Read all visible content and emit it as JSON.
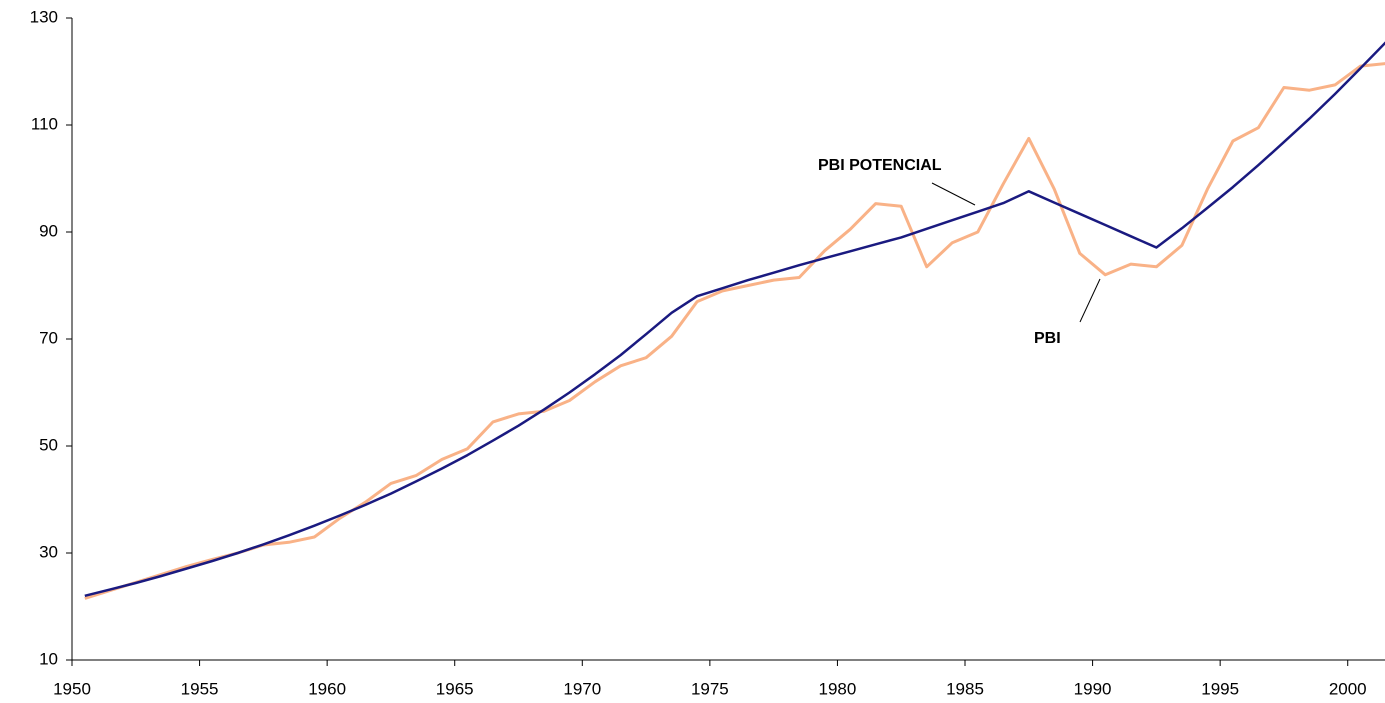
{
  "chart_data": {
    "type": "line",
    "x": [
      1950.5,
      1951.5,
      1952.5,
      1953.5,
      1954.5,
      1955.5,
      1956.5,
      1957.5,
      1958.5,
      1959.5,
      1960.5,
      1961.5,
      1962.5,
      1963.5,
      1964.5,
      1965.5,
      1966.5,
      1967.5,
      1968.5,
      1969.5,
      1970.5,
      1971.5,
      1972.5,
      1973.5,
      1974.5,
      1975.5,
      1976.5,
      1977.5,
      1978.5,
      1979.5,
      1980.5,
      1981.5,
      1982.5,
      1983.5,
      1984.5,
      1985.5,
      1986.5,
      1987.5,
      1988.5,
      1989.5,
      1990.5,
      1991.5,
      1992.5,
      1993.5,
      1994.5,
      1995.5,
      1996.5,
      1997.5,
      1998.5,
      1999.5,
      2000.5,
      2001.5
    ],
    "series": [
      {
        "name": "PBI",
        "color": "#f9b287",
        "values": [
          21.5,
          23,
          24.5,
          26,
          27.5,
          28.8,
          30,
          31.5,
          32,
          33,
          36.5,
          39.5,
          43,
          44.5,
          47.5,
          49.5,
          54.5,
          56,
          56.5,
          58.5,
          62,
          65,
          66.5,
          70.5,
          77,
          79,
          80,
          81,
          81.5,
          86.5,
          90.5,
          95.3,
          94.8,
          83.5,
          88,
          90,
          99,
          107.5,
          98,
          86,
          82,
          84,
          83.5,
          87.5,
          98,
          107,
          109.5,
          117,
          116.5,
          117.5,
          121,
          121.5
        ]
      },
      {
        "name": "PBI POTENCIAL",
        "color": "#1a1a80",
        "values": [
          22,
          23.2,
          24.4,
          25.7,
          27.1,
          28.5,
          30,
          31.6,
          33.3,
          35.1,
          37,
          39,
          41.1,
          43.4,
          45.8,
          48.3,
          51,
          53.8,
          56.8,
          60,
          63.4,
          67,
          70.9,
          74.9,
          78,
          79.5,
          81,
          82.4,
          83.8,
          85.1,
          86.4,
          87.7,
          89,
          90.6,
          92.2,
          93.8,
          95.4,
          97.6,
          95.5,
          93.4,
          91.3,
          89.2,
          87.1,
          90.7,
          94.5,
          98.4,
          102.5,
          106.8,
          111.2,
          115.8,
          120.6,
          125.5
        ]
      }
    ],
    "xlim": [
      1950,
      2001.5
    ],
    "xticks": [
      1950,
      1955,
      1960,
      1965,
      1970,
      1975,
      1980,
      1985,
      1990,
      1995,
      2000
    ],
    "ylim": [
      10,
      130
    ],
    "yticks": [
      10,
      30,
      50,
      70,
      90,
      110,
      130
    ]
  }
}
